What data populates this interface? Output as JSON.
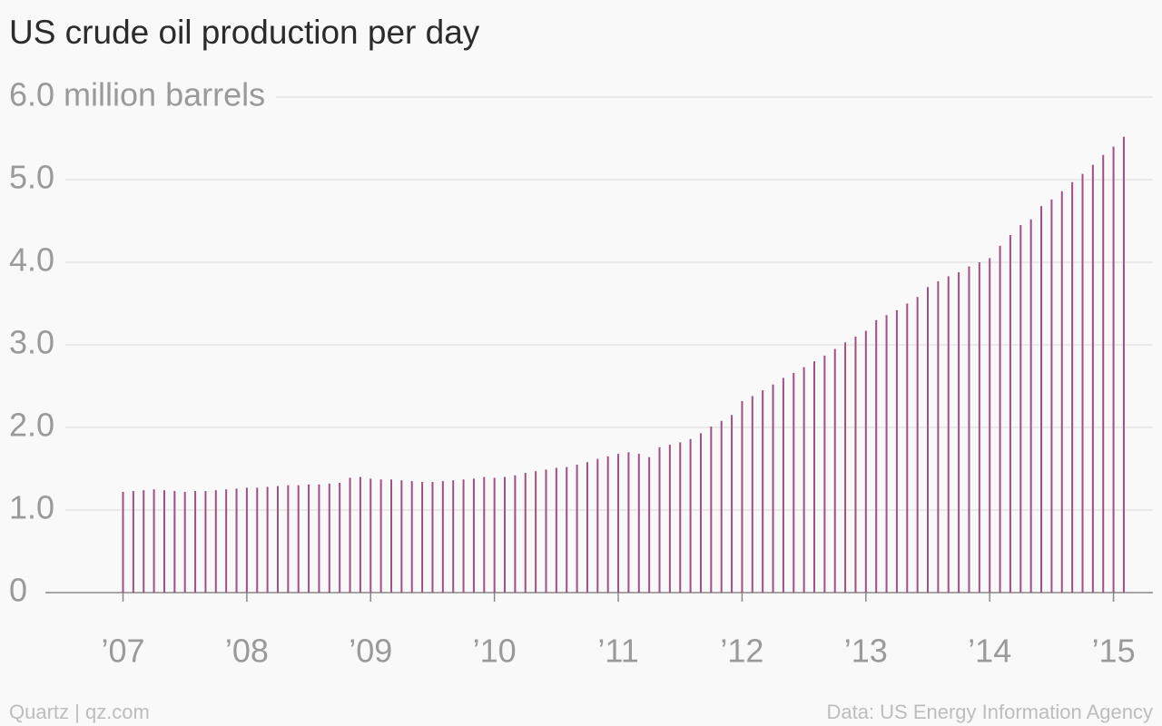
{
  "chart_data": {
    "type": "bar",
    "title": "US crude oil production per day",
    "source": "Data: US Energy Information Agency",
    "credit": "Quartz | qz.com",
    "color": "#a24f82",
    "grid": true,
    "x": [
      2007,
      2007.0833,
      2007.1667,
      2007.25,
      2007.3333,
      2007.4167,
      2007.5,
      2007.5833,
      2007.6667,
      2007.75,
      2007.8333,
      2007.9167,
      2008,
      2008.0833,
      2008.1667,
      2008.25,
      2008.3333,
      2008.4167,
      2008.5,
      2008.5833,
      2008.6667,
      2008.75,
      2008.8333,
      2008.9167,
      2009,
      2009.0833,
      2009.1667,
      2009.25,
      2009.3333,
      2009.4167,
      2009.5,
      2009.5833,
      2009.6667,
      2009.75,
      2009.8333,
      2009.9167,
      2010,
      2010.0833,
      2010.1667,
      2010.25,
      2010.3333,
      2010.4167,
      2010.5,
      2010.5833,
      2010.6667,
      2010.75,
      2010.8333,
      2010.9167,
      2011,
      2011.0833,
      2011.1667,
      2011.25,
      2011.3333,
      2011.4167,
      2011.5,
      2011.5833,
      2011.6667,
      2011.75,
      2011.8333,
      2011.9167,
      2012,
      2012.0833,
      2012.1667,
      2012.25,
      2012.3333,
      2012.4167,
      2012.5,
      2012.5833,
      2012.6667,
      2012.75,
      2012.8333,
      2012.9167,
      2013,
      2013.0833,
      2013.1667,
      2013.25,
      2013.3333,
      2013.4167,
      2013.5,
      2013.5833,
      2013.6667,
      2013.75,
      2013.8333,
      2013.9167,
      2014,
      2014.0833,
      2014.1667,
      2014.25,
      2014.3333,
      2014.4167,
      2014.5,
      2014.5833,
      2014.6667,
      2014.75,
      2014.8333,
      2014.9167,
      2015,
      2015.0833
    ],
    "values": [
      1.22,
      1.23,
      1.24,
      1.25,
      1.24,
      1.23,
      1.22,
      1.23,
      1.23,
      1.24,
      1.25,
      1.26,
      1.27,
      1.27,
      1.28,
      1.29,
      1.3,
      1.3,
      1.31,
      1.31,
      1.32,
      1.33,
      1.39,
      1.4,
      1.38,
      1.37,
      1.37,
      1.36,
      1.35,
      1.34,
      1.34,
      1.35,
      1.36,
      1.37,
      1.38,
      1.4,
      1.39,
      1.4,
      1.42,
      1.45,
      1.47,
      1.49,
      1.51,
      1.52,
      1.55,
      1.58,
      1.62,
      1.65,
      1.68,
      1.7,
      1.68,
      1.64,
      1.76,
      1.79,
      1.82,
      1.86,
      1.93,
      2.01,
      2.08,
      2.15,
      2.32,
      2.38,
      2.45,
      2.52,
      2.6,
      2.66,
      2.73,
      2.8,
      2.87,
      2.95,
      3.03,
      3.1,
      3.17,
      3.3,
      3.36,
      3.42,
      3.5,
      3.58,
      3.7,
      3.77,
      3.83,
      3.88,
      3.95,
      4.0,
      4.05,
      4.2,
      4.33,
      4.45,
      4.52,
      4.68,
      4.76,
      4.86,
      4.97,
      5.07,
      5.18,
      5.3,
      5.4,
      5.52
    ],
    "xlim": [
      2006.56,
      2015.19
    ],
    "xticks": [
      {
        "value": 2007,
        "label": "’07"
      },
      {
        "value": 2008,
        "label": "’08"
      },
      {
        "value": 2009,
        "label": "’09"
      },
      {
        "value": 2010,
        "label": "’10"
      },
      {
        "value": 2011,
        "label": "’11"
      },
      {
        "value": 2012,
        "label": "’12"
      },
      {
        "value": 2013,
        "label": "’13"
      },
      {
        "value": 2014,
        "label": "’14"
      },
      {
        "value": 2015,
        "label": "’15"
      }
    ],
    "ylim": [
      0,
      6
    ],
    "yticks": [
      0,
      {
        "value": 1,
        "label": "1.0"
      },
      {
        "value": 2,
        "label": "2.0"
      },
      {
        "value": 3,
        "label": "3.0"
      },
      {
        "value": 4,
        "label": "4.0"
      },
      {
        "value": 5,
        "label": "5.0"
      },
      {
        "value": 6,
        "label": "6.0 million barrels"
      }
    ]
  }
}
